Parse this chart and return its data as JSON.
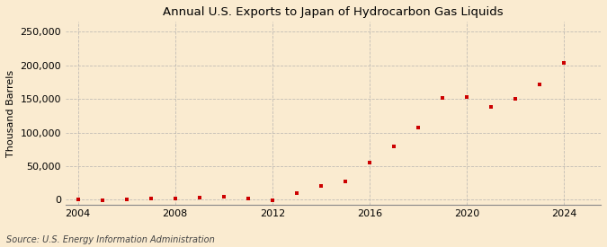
{
  "title": "Annual U.S. Exports to Japan of Hydrocarbon Gas Liquids",
  "ylabel": "Thousand Barrels",
  "source_text": "Source: U.S. Energy Information Administration",
  "background_color": "#faebd0",
  "plot_background_color": "#faebd0",
  "marker_color": "#cc0000",
  "grid_color": "#aaaaaa",
  "years": [
    2004,
    2005,
    2006,
    2007,
    2008,
    2009,
    2010,
    2011,
    2012,
    2013,
    2014,
    2015,
    2016,
    2017,
    2018,
    2019,
    2020,
    2021,
    2022,
    2023,
    2024
  ],
  "values": [
    200,
    -700,
    500,
    1500,
    2000,
    3500,
    4000,
    2000,
    -500,
    10000,
    20000,
    27000,
    55000,
    80000,
    107000,
    152000,
    153000,
    138000,
    150000,
    172000,
    203000
  ],
  "xlim": [
    2003.5,
    2025.5
  ],
  "ylim": [
    -8000,
    265000
  ],
  "yticks": [
    0,
    50000,
    100000,
    150000,
    200000,
    250000
  ],
  "xticks": [
    2004,
    2008,
    2012,
    2016,
    2020,
    2024
  ],
  "vgrid_years": [
    2004,
    2008,
    2012,
    2016,
    2020,
    2024
  ]
}
